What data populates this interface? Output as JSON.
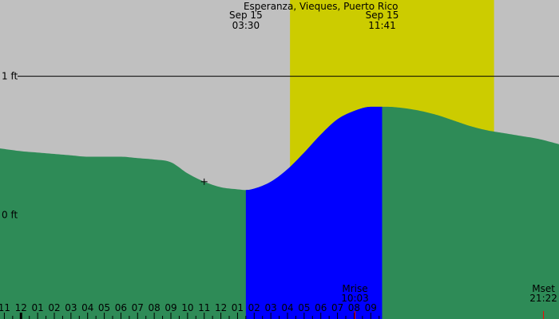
{
  "chart_data": {
    "type": "area",
    "title": "Esperanza, Vieques, Puerto Rico",
    "y_axis_labels": [
      "1 ft",
      "0 ft"
    ],
    "y_axis_values": [
      1,
      0
    ],
    "ylim": [
      -0.75,
      1.55
    ],
    "x_unit": "hours",
    "xlim": [
      -11.26,
      22.3
    ],
    "daylight": {
      "start_hour": 6.15,
      "end_hour": 18.4
    },
    "extremes": [
      {
        "type": "low",
        "date_label": "Sep 15",
        "time_label": "03:30",
        "hour": 3.5,
        "height_ft": 0.18
      },
      {
        "type": "high",
        "date_label": "Sep 15",
        "time_label": "11:41",
        "hour": 11.68,
        "height_ft": 0.78
      }
    ],
    "rising_interval": {
      "start_hour": 3.5,
      "end_hour": 11.68
    },
    "marker_hour": 1.0,
    "tide_series": {
      "hours": [
        -11.26,
        -10,
        -9,
        -8,
        -7,
        -6,
        -5,
        -4,
        -3,
        -2,
        -1,
        0,
        1,
        2,
        3,
        3.5,
        4,
        5,
        6,
        7,
        8,
        9,
        10,
        11,
        11.68,
        12,
        13,
        14,
        15,
        16,
        17,
        18,
        19,
        20,
        21,
        22,
        22.3
      ],
      "height_ft": [
        0.48,
        0.46,
        0.45,
        0.44,
        0.43,
        0.42,
        0.42,
        0.42,
        0.41,
        0.4,
        0.38,
        0.3,
        0.24,
        0.2,
        0.185,
        0.18,
        0.19,
        0.24,
        0.33,
        0.45,
        0.58,
        0.69,
        0.75,
        0.78,
        0.78,
        0.78,
        0.77,
        0.75,
        0.72,
        0.68,
        0.64,
        0.61,
        0.59,
        0.57,
        0.55,
        0.52,
        0.51
      ]
    },
    "x_tick_labels": [
      "11",
      "12",
      "01",
      "02",
      "03",
      "04",
      "05",
      "06",
      "07",
      "08",
      "09",
      "10",
      "11",
      "12",
      "01",
      "02",
      "03",
      "04",
      "05",
      "06",
      "07",
      "08",
      "09"
    ],
    "x_tick_hours": [
      -11,
      -10,
      -9,
      -8,
      -7,
      -6,
      -5,
      -4,
      -3,
      -2,
      -1,
      0,
      1,
      2,
      3,
      4,
      5,
      6,
      7,
      8,
      9,
      10,
      11
    ],
    "moon_events": [
      {
        "label": "Mrise",
        "time_label": "10:03",
        "hour": 10.05
      },
      {
        "label": "Mset",
        "time_label": "21:22",
        "hour": 21.37
      }
    ],
    "colors": {
      "background": "#c0c0c0",
      "daylight": "#cccc00",
      "tide_fill": "#2e8b57",
      "rising_fill": "#0000ff",
      "moon_tick": "#ff0000",
      "text": "#000000"
    }
  }
}
